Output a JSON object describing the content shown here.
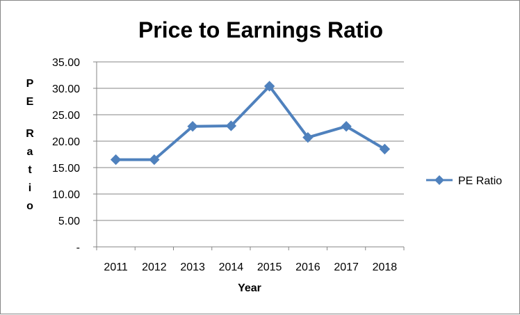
{
  "chart_data": {
    "type": "line",
    "title": "Price to Earnings Ratio",
    "xlabel": "Year",
    "ylabel": "PE Ratio",
    "categories": [
      "2011",
      "2012",
      "2013",
      "2014",
      "2015",
      "2016",
      "2017",
      "2018"
    ],
    "series": [
      {
        "name": "PE Ratio",
        "values": [
          16.5,
          16.5,
          22.8,
          22.9,
          30.4,
          20.7,
          22.8,
          18.5
        ],
        "color": "#4F81BD",
        "marker": "diamond"
      }
    ],
    "ylim": [
      0,
      35
    ],
    "yticks": [
      0,
      5,
      10,
      15,
      20,
      25,
      30,
      35
    ],
    "ytick_labels": [
      "-",
      "5.00",
      "10.00",
      "15.00",
      "20.00",
      "25.00",
      "30.00",
      "35.00"
    ],
    "grid": true,
    "legend": "right"
  }
}
